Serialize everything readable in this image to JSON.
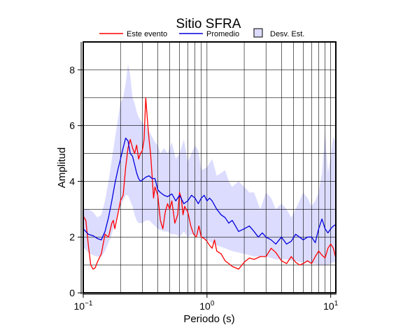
{
  "chart_data": {
    "type": "line",
    "title": "Sitio SFRA",
    "xlabel": "Periodo (s)",
    "ylabel": "Amplitud",
    "xscale": "log",
    "xlim": [
      0.1,
      11
    ],
    "ylim": [
      0,
      9
    ],
    "grid": true,
    "legend_position": "top",
    "x_ticks": [
      {
        "value": 0.1,
        "base": "10",
        "exp": "−1"
      },
      {
        "value": 1,
        "base": "10",
        "exp": "0"
      },
      {
        "value": 10,
        "base": "10",
        "exp": "1"
      }
    ],
    "y_ticks": [
      0,
      2,
      4,
      6,
      8
    ],
    "legend": [
      {
        "label": "Este evento",
        "kind": "line",
        "color": "#ff0000"
      },
      {
        "label": "Promedio",
        "kind": "line",
        "color": "#0000dd"
      },
      {
        "label": "Desv. Est.",
        "kind": "band",
        "color": "#dcdcff"
      }
    ],
    "series": [
      {
        "name": "Este evento",
        "color": "#ff0000",
        "x": [
          0.1,
          0.105,
          0.11,
          0.115,
          0.12,
          0.125,
          0.13,
          0.14,
          0.15,
          0.16,
          0.17,
          0.175,
          0.18,
          0.19,
          0.2,
          0.21,
          0.22,
          0.23,
          0.24,
          0.25,
          0.26,
          0.27,
          0.28,
          0.29,
          0.3,
          0.31,
          0.32,
          0.33,
          0.34,
          0.35,
          0.36,
          0.37,
          0.38,
          0.4,
          0.42,
          0.44,
          0.46,
          0.48,
          0.5,
          0.52,
          0.55,
          0.58,
          0.6,
          0.62,
          0.64,
          0.66,
          0.7,
          0.74,
          0.78,
          0.82,
          0.86,
          0.9,
          0.95,
          1.0,
          1.05,
          1.1,
          1.15,
          1.2,
          1.3,
          1.4,
          1.5,
          1.6,
          1.8,
          2.0,
          2.2,
          2.4,
          2.7,
          3.0,
          3.3,
          3.6,
          4.0,
          4.4,
          4.8,
          5.2,
          5.6,
          6.0,
          6.5,
          7.0,
          7.5,
          8.0,
          8.5,
          9.0,
          9.5,
          10.0,
          10.5,
          11.0
        ],
        "values": [
          2.75,
          2.6,
          1.7,
          1.0,
          0.85,
          0.9,
          1.1,
          1.4,
          2.1,
          2.0,
          2.5,
          2.6,
          2.3,
          2.8,
          3.3,
          3.5,
          4.5,
          5.2,
          5.5,
          5.2,
          5.0,
          5.3,
          4.8,
          5.0,
          5.1,
          5.5,
          7.0,
          6.2,
          5.5,
          5.0,
          4.2,
          3.4,
          3.8,
          3.5,
          2.6,
          2.3,
          2.9,
          3.2,
          3.0,
          3.3,
          2.5,
          2.8,
          3.6,
          3.4,
          2.8,
          3.1,
          2.9,
          2.4,
          2.1,
          2.0,
          2.4,
          2.0,
          1.95,
          1.85,
          1.7,
          1.6,
          1.9,
          1.5,
          1.4,
          1.15,
          1.05,
          0.95,
          0.85,
          1.1,
          1.25,
          1.2,
          1.3,
          1.3,
          1.6,
          1.45,
          1.15,
          1.05,
          1.3,
          1.1,
          1.0,
          1.05,
          1.15,
          1.05,
          1.3,
          1.5,
          1.35,
          1.25,
          1.6,
          1.75,
          1.6,
          1.25
        ]
      },
      {
        "name": "Promedio",
        "color": "#0000dd",
        "x": [
          0.1,
          0.11,
          0.12,
          0.13,
          0.14,
          0.15,
          0.16,
          0.17,
          0.18,
          0.19,
          0.2,
          0.21,
          0.22,
          0.23,
          0.24,
          0.25,
          0.26,
          0.27,
          0.28,
          0.29,
          0.3,
          0.32,
          0.34,
          0.36,
          0.38,
          0.4,
          0.42,
          0.45,
          0.48,
          0.52,
          0.56,
          0.6,
          0.65,
          0.7,
          0.75,
          0.8,
          0.85,
          0.9,
          0.95,
          1.0,
          1.05,
          1.1,
          1.2,
          1.3,
          1.4,
          1.5,
          1.6,
          1.7,
          1.8,
          2.0,
          2.2,
          2.4,
          2.6,
          2.8,
          3.0,
          3.3,
          3.6,
          4.0,
          4.4,
          4.8,
          5.2,
          5.6,
          6.0,
          6.5,
          7.0,
          7.5,
          8.0,
          8.5,
          9.0,
          9.5,
          10.0,
          10.5,
          11.0
        ],
        "values": [
          2.3,
          2.1,
          2.05,
          1.95,
          1.9,
          2.2,
          2.7,
          3.3,
          3.9,
          4.4,
          4.8,
          5.2,
          5.55,
          5.45,
          5.0,
          4.9,
          4.6,
          4.3,
          4.1,
          4.0,
          4.05,
          4.15,
          4.2,
          4.1,
          4.1,
          3.7,
          3.6,
          3.5,
          3.45,
          3.55,
          3.3,
          3.5,
          3.2,
          3.3,
          3.5,
          3.4,
          3.2,
          3.4,
          3.5,
          3.3,
          3.4,
          3.3,
          3.0,
          2.8,
          2.7,
          2.5,
          2.6,
          2.4,
          2.2,
          2.3,
          2.4,
          2.2,
          2.0,
          2.15,
          2.0,
          1.9,
          1.75,
          2.0,
          1.75,
          1.85,
          2.1,
          2.0,
          1.9,
          2.0,
          2.0,
          1.8,
          2.3,
          2.65,
          2.3,
          2.15,
          2.3,
          2.4,
          2.45
        ]
      }
    ],
    "band": {
      "name": "Desv. Est.",
      "color": "#dcdcff",
      "x": [
        0.1,
        0.11,
        0.12,
        0.13,
        0.14,
        0.15,
        0.16,
        0.17,
        0.18,
        0.19,
        0.2,
        0.21,
        0.22,
        0.23,
        0.24,
        0.25,
        0.26,
        0.27,
        0.28,
        0.3,
        0.32,
        0.34,
        0.36,
        0.38,
        0.4,
        0.42,
        0.45,
        0.48,
        0.52,
        0.56,
        0.6,
        0.65,
        0.7,
        0.75,
        0.8,
        0.85,
        0.9,
        1.0,
        1.1,
        1.2,
        1.3,
        1.4,
        1.5,
        1.6,
        1.8,
        2.0,
        2.2,
        2.4,
        2.7,
        3.0,
        3.3,
        3.6,
        4.0,
        4.4,
        4.8,
        5.2,
        5.6,
        6.0,
        6.5,
        7.0,
        7.5,
        8.0,
        8.5,
        9.0,
        9.5,
        10.0,
        10.5,
        11.0
      ],
      "upper": [
        3.0,
        3.0,
        2.9,
        2.7,
        2.8,
        3.3,
        4.0,
        4.8,
        5.5,
        6.2,
        6.8,
        7.0,
        7.5,
        8.2,
        7.8,
        7.0,
        6.8,
        6.5,
        6.3,
        6.1,
        6.0,
        5.8,
        5.6,
        5.4,
        5.3,
        5.0,
        5.2,
        5.0,
        5.4,
        4.8,
        5.0,
        5.5,
        4.7,
        5.0,
        5.3,
        5.1,
        4.4,
        4.5,
        4.8,
        4.2,
        4.3,
        4.4,
        4.0,
        3.8,
        4.0,
        3.8,
        3.6,
        3.6,
        3.0,
        3.6,
        3.4,
        3.0,
        3.2,
        3.0,
        2.7,
        3.0,
        3.3,
        3.6,
        3.4,
        3.1,
        3.3,
        3.6,
        4.3,
        5.8,
        4.3,
        4.9,
        5.6,
        5.4
      ],
      "lower": [
        1.65,
        1.45,
        1.35,
        1.3,
        1.3,
        1.5,
        1.8,
        2.1,
        2.5,
        2.8,
        3.1,
        3.3,
        3.5,
        3.5,
        3.3,
        3.1,
        2.8,
        2.6,
        2.5,
        2.5,
        2.6,
        2.6,
        2.5,
        2.4,
        2.3,
        2.25,
        2.2,
        2.2,
        2.1,
        2.1,
        2.0,
        2.2,
        2.0,
        2.1,
        2.1,
        2.05,
        2.0,
        1.9,
        1.8,
        1.7,
        1.65,
        1.6,
        1.55,
        1.5,
        1.45,
        1.4,
        1.35,
        1.3,
        1.3,
        1.3,
        1.25,
        1.2,
        1.2,
        1.2,
        1.15,
        1.15,
        1.1,
        1.1,
        1.1,
        1.05,
        1.05,
        1.0,
        1.0,
        1.0,
        1.0,
        1.05,
        1.1,
        1.1
      ]
    }
  }
}
